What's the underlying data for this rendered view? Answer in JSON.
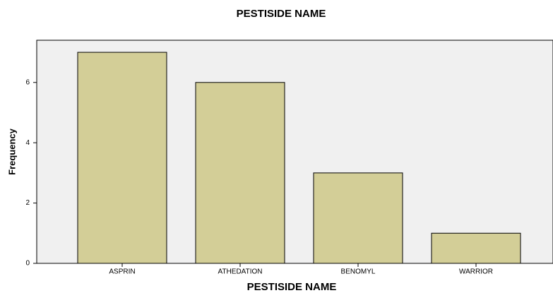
{
  "chart_data": {
    "type": "bar",
    "title": "PESTISIDE NAME",
    "x_label": "PESTISIDE NAME",
    "y_label": "Frequency",
    "categories": [
      "ASPRIN",
      "ATHEDATION",
      "BENOMYL",
      "WARRIOR"
    ],
    "values": [
      7,
      6,
      3,
      1
    ],
    "color": "#d3ce97",
    "ylim": [
      0,
      7.4
    ],
    "yticks": [
      0,
      2,
      4,
      6
    ],
    "grid": false
  }
}
